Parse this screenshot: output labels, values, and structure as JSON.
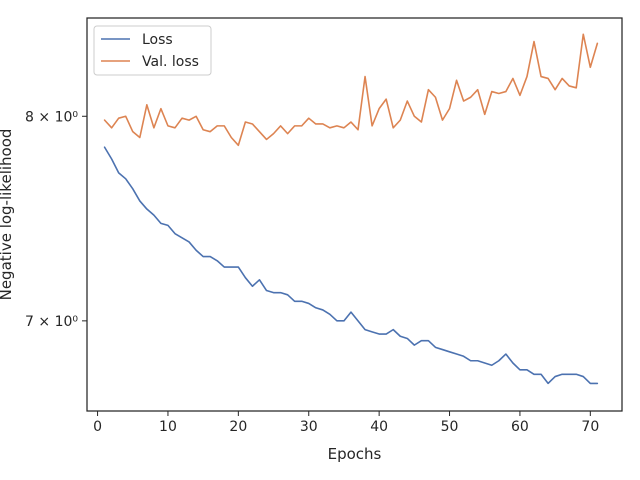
{
  "chart_data": {
    "type": "line",
    "title": "",
    "xlabel": "Epochs",
    "ylabel": "Negative log-likelihood",
    "yscale": "log",
    "xlim": [
      -1.5,
      74.5
    ],
    "ylim": [
      6.6,
      8.53
    ],
    "x_ticks": [
      0,
      10,
      20,
      30,
      40,
      50,
      60,
      70
    ],
    "y_ticks": [
      {
        "value": 7,
        "label": "7 × 10⁰"
      },
      {
        "value": 8,
        "label": "8 × 10⁰"
      }
    ],
    "grid": false,
    "legend_position": "top-left",
    "x": [
      1,
      2,
      3,
      4,
      5,
      6,
      7,
      8,
      9,
      10,
      11,
      12,
      13,
      14,
      15,
      16,
      17,
      18,
      19,
      20,
      21,
      22,
      23,
      24,
      25,
      26,
      27,
      28,
      29,
      30,
      31,
      32,
      33,
      34,
      35,
      36,
      37,
      38,
      39,
      40,
      41,
      42,
      43,
      44,
      45,
      46,
      47,
      48,
      49,
      50,
      51,
      52,
      53,
      54,
      55,
      56,
      57,
      58,
      59,
      60,
      61,
      62,
      63,
      64,
      65,
      66,
      67,
      68,
      69,
      70,
      71
    ],
    "series": [
      {
        "name": "Loss",
        "color": "#4c72b0",
        "values": [
          7.84,
          7.78,
          7.71,
          7.68,
          7.63,
          7.57,
          7.53,
          7.5,
          7.46,
          7.45,
          7.41,
          7.39,
          7.37,
          7.33,
          7.3,
          7.3,
          7.28,
          7.25,
          7.25,
          7.25,
          7.2,
          7.16,
          7.19,
          7.14,
          7.13,
          7.13,
          7.12,
          7.09,
          7.09,
          7.08,
          7.06,
          7.05,
          7.03,
          7.0,
          7.0,
          7.04,
          7.0,
          6.96,
          6.95,
          6.94,
          6.94,
          6.96,
          6.93,
          6.92,
          6.89,
          6.91,
          6.91,
          6.88,
          6.87,
          6.86,
          6.85,
          6.84,
          6.82,
          6.82,
          6.81,
          6.8,
          6.82,
          6.85,
          6.81,
          6.78,
          6.78,
          6.76,
          6.76,
          6.72,
          6.75,
          6.76,
          6.76,
          6.76,
          6.75,
          6.72,
          6.72
        ]
      },
      {
        "name": "Val. loss",
        "color": "#dd8452",
        "values": [
          7.98,
          7.94,
          7.99,
          8.0,
          7.92,
          7.89,
          8.06,
          7.94,
          8.04,
          7.95,
          7.94,
          7.99,
          7.98,
          8.0,
          7.93,
          7.92,
          7.95,
          7.95,
          7.89,
          7.85,
          7.97,
          7.96,
          7.92,
          7.88,
          7.91,
          7.95,
          7.91,
          7.95,
          7.95,
          7.99,
          7.96,
          7.96,
          7.94,
          7.95,
          7.94,
          7.97,
          7.93,
          8.21,
          7.95,
          8.04,
          8.09,
          7.94,
          7.98,
          8.08,
          8.0,
          7.97,
          8.14,
          8.1,
          7.98,
          8.04,
          8.19,
          8.08,
          8.1,
          8.14,
          8.01,
          8.13,
          8.12,
          8.13,
          8.2,
          8.11,
          8.21,
          8.4,
          8.21,
          8.2,
          8.14,
          8.2,
          8.16,
          8.15,
          8.44,
          8.26,
          8.39
        ]
      }
    ]
  }
}
